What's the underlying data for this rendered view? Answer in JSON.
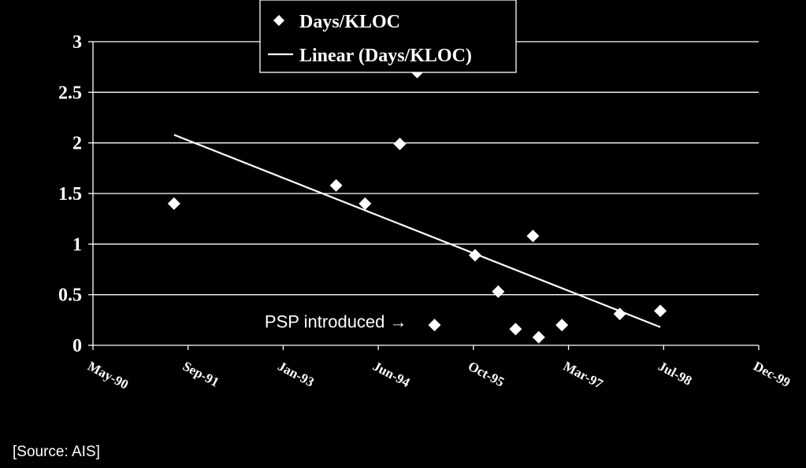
{
  "chart_data": {
    "type": "scatter",
    "title": "",
    "xlabel": "",
    "ylabel": "",
    "ylim": [
      0,
      3
    ],
    "yticks": [
      0,
      0.5,
      1,
      1.5,
      2,
      2.5,
      3
    ],
    "ytick_labels": [
      "0",
      "0.5",
      "1",
      "1.5",
      "2",
      "2.5",
      "3"
    ],
    "xlim": [
      "1990-05",
      "1999-12"
    ],
    "xtick_labels": [
      "May-90",
      "Sep-91",
      "Jan-93",
      "Jun-94",
      "Oct-95",
      "Mar-97",
      "Jul-98",
      "Dec-99"
    ],
    "grid": "horizontal",
    "legend_position": "top-center",
    "series": [
      {
        "name": "Days/KLOC",
        "kind": "scatter",
        "marker": "diamond",
        "color": "#ffffff",
        "points": [
          {
            "x": "1991-07",
            "y": 1.4
          },
          {
            "x": "1993-11",
            "y": 1.58
          },
          {
            "x": "1994-04",
            "y": 1.4
          },
          {
            "x": "1994-10",
            "y": 1.99
          },
          {
            "x": "1995-01",
            "y": 2.7
          },
          {
            "x": "1995-04",
            "y": 0.2
          },
          {
            "x": "1995-11",
            "y": 0.89
          },
          {
            "x": "1996-03",
            "y": 0.53
          },
          {
            "x": "1996-06",
            "y": 0.16
          },
          {
            "x": "1996-09",
            "y": 1.08
          },
          {
            "x": "1996-10",
            "y": 0.08
          },
          {
            "x": "1997-02",
            "y": 0.2
          },
          {
            "x": "1997-12",
            "y": 0.31
          },
          {
            "x": "1998-07",
            "y": 0.34
          }
        ]
      },
      {
        "name": "Linear (Days/KLOC)",
        "kind": "line",
        "color": "#ffffff",
        "points": [
          {
            "x": "1991-07",
            "y": 2.08
          },
          {
            "x": "1998-07",
            "y": 0.18
          }
        ]
      }
    ],
    "annotations": [
      {
        "text": "PSP introduced",
        "arrow": "→",
        "target": {
          "x": "1995-04",
          "y": 0.2
        }
      }
    ]
  },
  "footer": {
    "source": "[Source: AIS]"
  },
  "colors": {
    "background": "#000000",
    "foreground": "#ffffff"
  }
}
